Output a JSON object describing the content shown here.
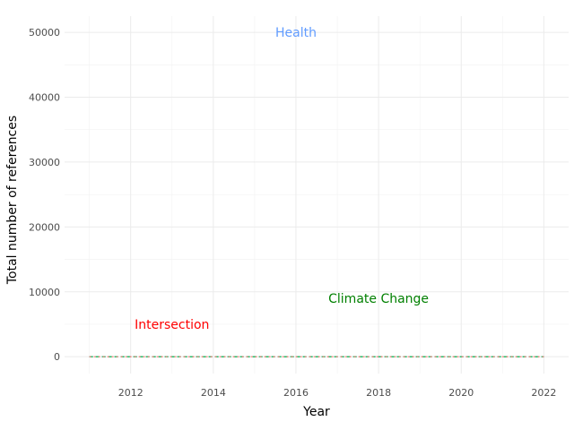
{
  "chart_data": {
    "type": "line",
    "title": "",
    "xlabel": "Year",
    "ylabel": "Total number of references",
    "xlim": [
      2010.4,
      2022.6
    ],
    "ylim": [
      -2600,
      52500
    ],
    "x_ticks": [
      2012,
      2014,
      2016,
      2018,
      2020,
      2022
    ],
    "y_ticks": [
      0,
      10000,
      20000,
      30000,
      40000,
      50000
    ],
    "y_tick_labels": [
      "0",
      "10000",
      "20000",
      "30000",
      "40000",
      "50000"
    ],
    "grid": true,
    "legend": "none",
    "x": [
      2011,
      2012,
      2013,
      2014,
      2015,
      2016,
      2017,
      2018,
      2019,
      2020,
      2021,
      2022
    ],
    "series": [
      {
        "color": "#619cff",
        "dash": "4,3",
        "values": [
          0,
          0,
          0,
          0,
          0,
          0,
          0,
          0,
          0,
          0,
          0,
          0
        ]
      },
      {
        "color": "#00ba38",
        "dash": "4,3",
        "values": [
          0,
          0,
          0,
          0,
          0,
          0,
          0,
          0,
          0,
          0,
          0,
          0
        ]
      },
      {
        "color": "#f8766d",
        "dash": "2,3",
        "values": [
          0,
          0,
          0,
          0,
          0,
          0,
          0,
          0,
          0,
          0,
          0,
          0
        ]
      }
    ],
    "annotations": [
      {
        "text": "Health",
        "x": 2016,
        "y": 50000,
        "color": "#619cff"
      },
      {
        "text": "Climate Change",
        "x": 2018,
        "y": 9000,
        "color": "#008000"
      },
      {
        "text": "Intersection",
        "x": 2013,
        "y": 5000,
        "color": "#ff0000"
      }
    ]
  }
}
